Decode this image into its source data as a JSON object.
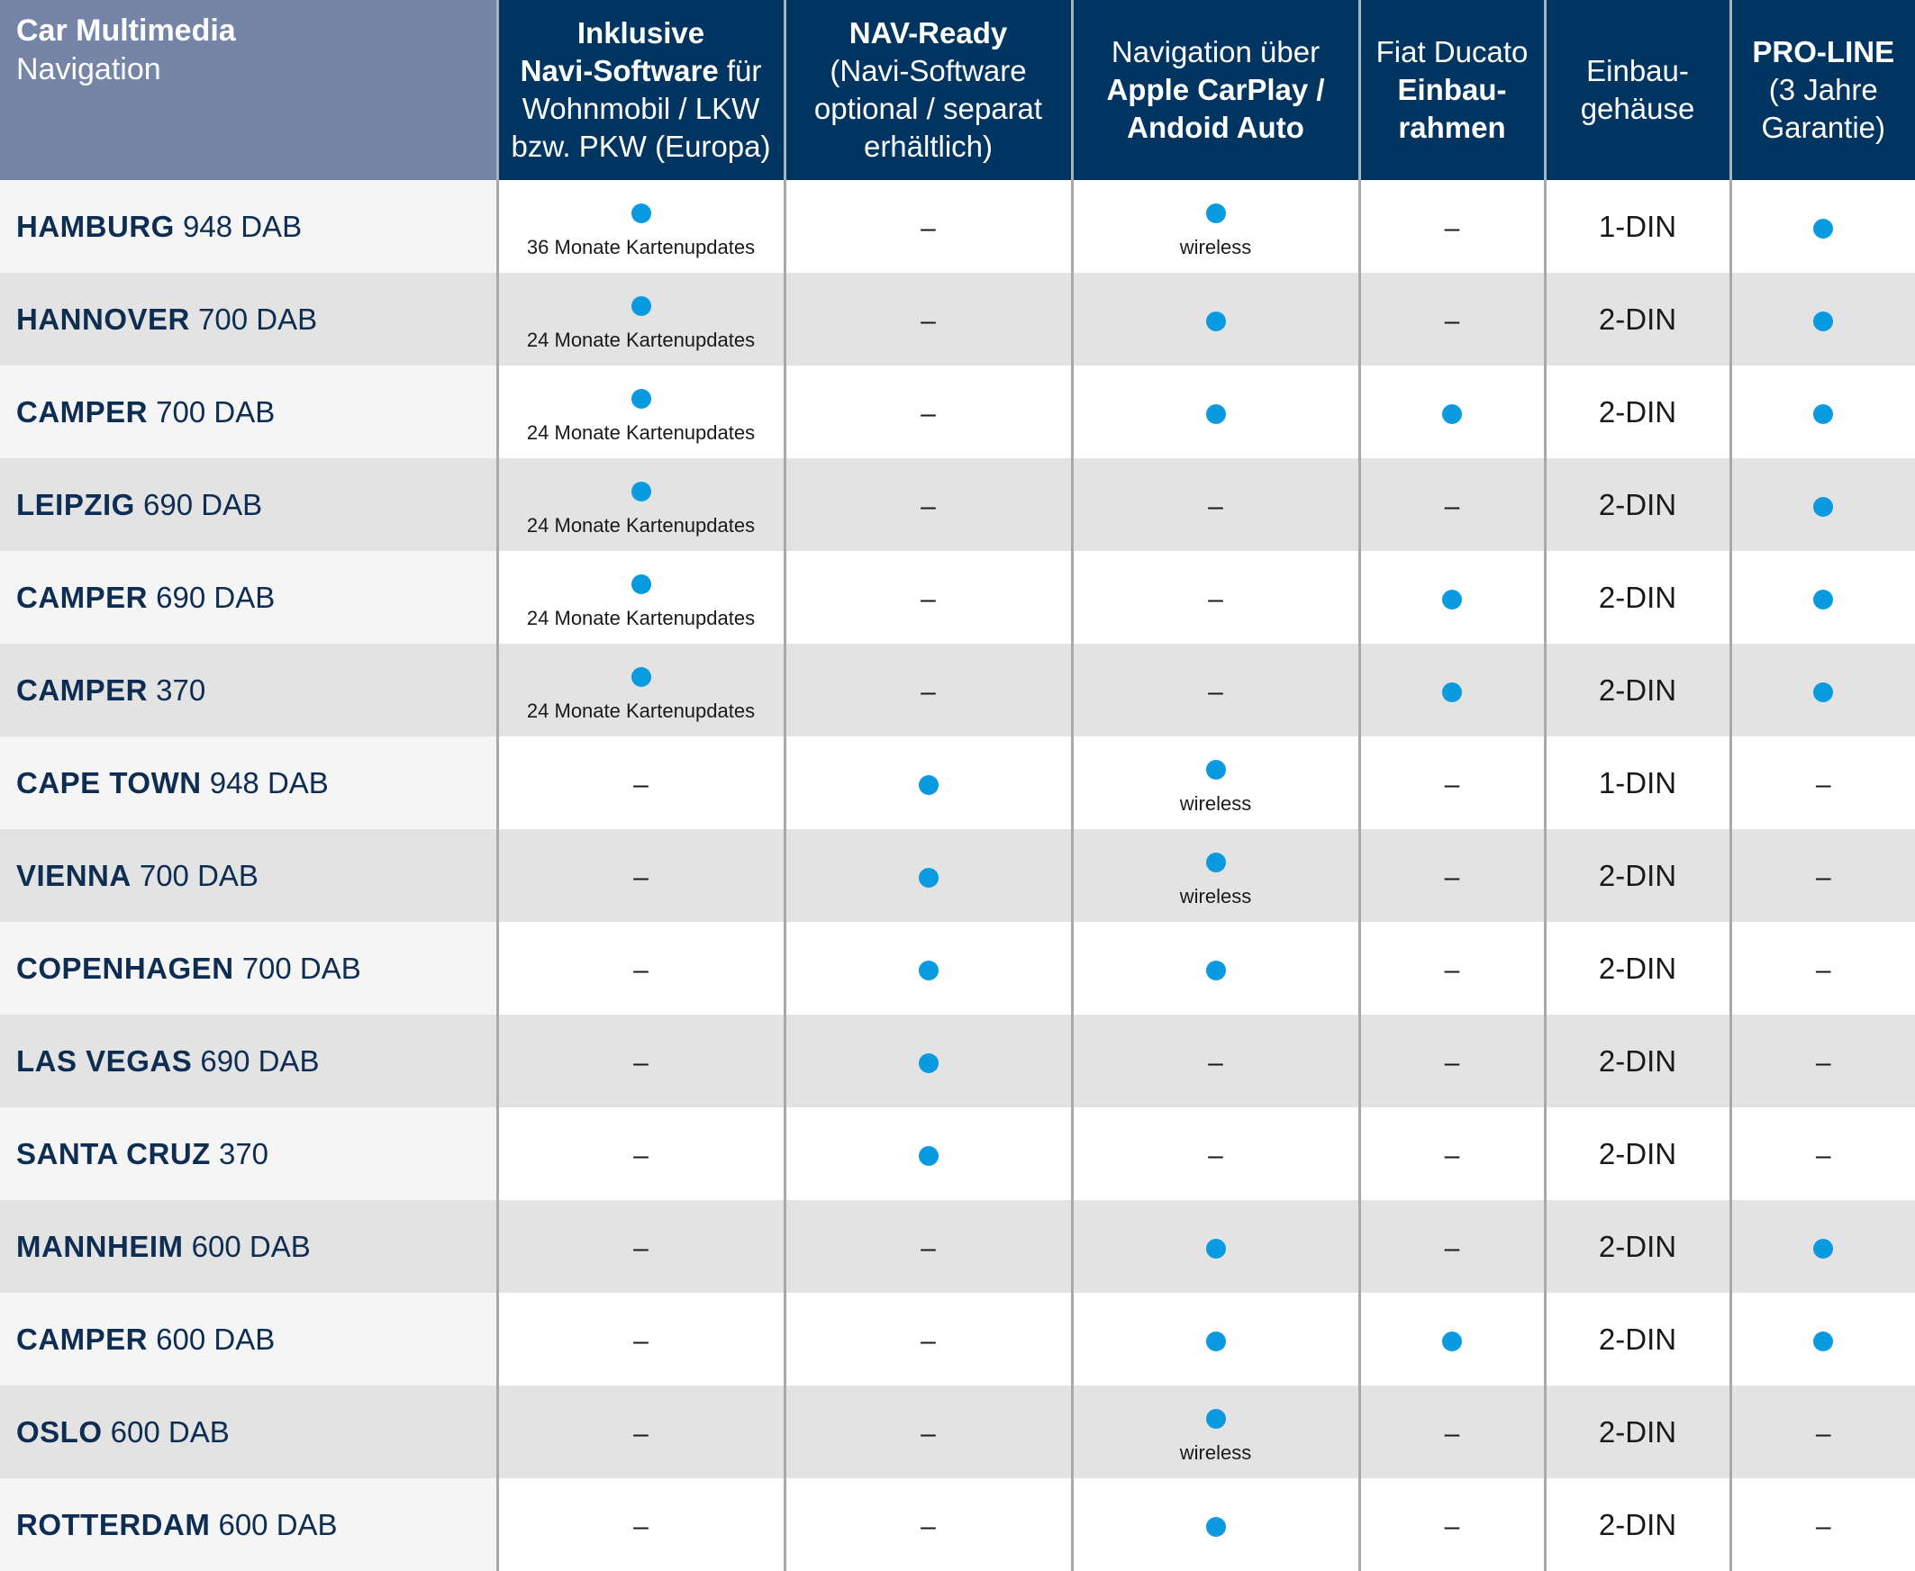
{
  "header": {
    "corner_title": "Car Multimedia",
    "corner_subtitle": "Navigation",
    "col1": {
      "line1": "Inklusive",
      "line2_bold": "Navi-Software",
      "line2_rest": " für",
      "line3": "Wohnmobil / LKW",
      "line4": "bzw. PKW (Europa)"
    },
    "col2": {
      "line1_bold": "NAV-Ready",
      "line2": "(Navi-Software",
      "line3": "optional / separat",
      "line4": "erhältlich)"
    },
    "col3": {
      "line1": "Navigation über",
      "line2_bold": "Apple CarPlay /",
      "line3_bold": "Andoid Auto"
    },
    "col4": {
      "line1": "Fiat Ducato",
      "line2_bold": "Einbau-",
      "line3_bold": "rahmen"
    },
    "col5": {
      "line1": "Einbau-",
      "line2": "gehäuse"
    },
    "col6": {
      "line1_bold": "PRO-LINE",
      "line2": "(3 Jahre",
      "line3": "Garantie)"
    }
  },
  "symbols": {
    "dash": "–",
    "dot_color": "#0a9ae0"
  },
  "rows": [
    {
      "name": "HAMBURG",
      "model": " 948 DAB",
      "nav_note": "36 Monate Kartenupdates",
      "carplay_note": "wireless",
      "din": "1-DIN"
    },
    {
      "name": "HANNOVER",
      "model": " 700 DAB",
      "nav_note": "24 Monate Kartenupdates",
      "din": "2-DIN"
    },
    {
      "name": "CAMPER",
      "model": " 700 DAB",
      "nav_note": "24 Monate Kartenupdates",
      "din": "2-DIN"
    },
    {
      "name": "LEIPZIG",
      "model": " 690 DAB",
      "nav_note": "24 Monate Kartenupdates",
      "din": "2-DIN"
    },
    {
      "name": "CAMPER",
      "model": " 690 DAB",
      "nav_note": "24 Monate Kartenupdates",
      "din": "2-DIN"
    },
    {
      "name": "CAMPER",
      "model": " 370",
      "nav_note": "24 Monate Kartenupdates",
      "din": "2-DIN"
    },
    {
      "name": "CAPE TOWN",
      "model": " 948 DAB",
      "carplay_note": "wireless",
      "din": "1-DIN"
    },
    {
      "name": "VIENNA",
      "model": " 700 DAB",
      "carplay_note": "wireless",
      "din": "2-DIN"
    },
    {
      "name": "COPENHAGEN",
      "model": " 700 DAB",
      "din": "2-DIN"
    },
    {
      "name": "LAS VEGAS",
      "model": " 690 DAB",
      "din": "2-DIN"
    },
    {
      "name": "SANTA CRUZ",
      "model": " 370",
      "din": "2-DIN"
    },
    {
      "name": "MANNHEIM",
      "model": " 600 DAB",
      "din": "2-DIN"
    },
    {
      "name": "CAMPER",
      "model": " 600 DAB",
      "din": "2-DIN"
    },
    {
      "name": "OSLO",
      "model": " 600 DAB",
      "carplay_note": "wireless",
      "din": "2-DIN"
    },
    {
      "name": "ROTTERDAM",
      "model": " 600 DAB",
      "din": "2-DIN"
    }
  ]
}
